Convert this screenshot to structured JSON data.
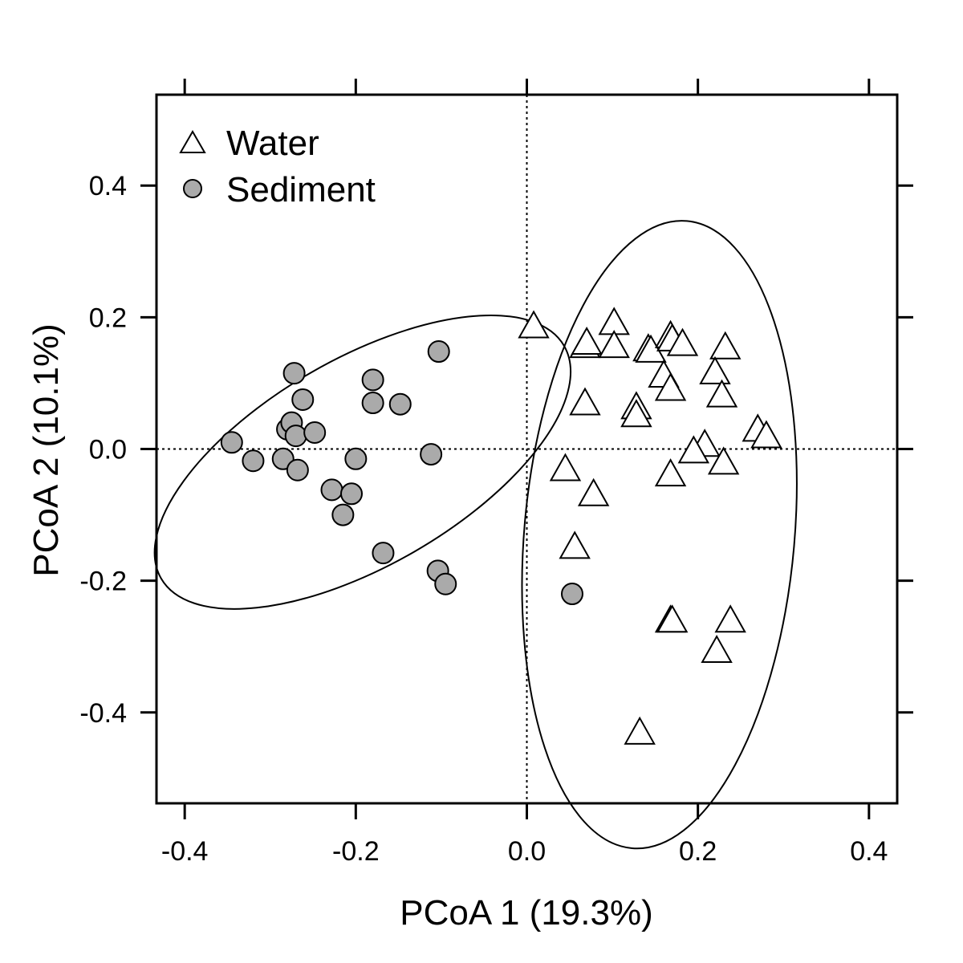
{
  "chart_data": {
    "type": "scatter",
    "xlabel": "PCoA 1 (19.3%)",
    "ylabel": "PCoA 2 (10.1%)",
    "xlim": [
      -0.433,
      0.433
    ],
    "ylim": [
      -0.538,
      0.538
    ],
    "xticks": [
      -0.4,
      -0.2,
      0.0,
      0.2,
      0.4
    ],
    "yticks": [
      -0.4,
      -0.2,
      0.0,
      0.2,
      0.4
    ],
    "xtick_labels": [
      "-0.4",
      "-0.2",
      "0.0",
      "0.2",
      "0.4"
    ],
    "ytick_labels": [
      "-0.4",
      "-0.2",
      "0.0",
      "0.2",
      "0.4"
    ],
    "reference_lines": {
      "x": 0.0,
      "y": 0.0,
      "style": "dotted"
    },
    "grid": false,
    "legend_position": "top-left",
    "series": [
      {
        "name": "Water",
        "marker": "open-triangle",
        "color": "#ffffff",
        "edge_color": "#000000",
        "x": [
          0.008,
          0.068,
          0.07,
          0.102,
          0.102,
          0.142,
          0.145,
          0.16,
          0.168,
          0.17,
          0.182,
          0.232,
          0.22,
          0.228,
          0.068,
          0.128,
          0.128,
          0.168,
          0.27,
          0.28,
          0.208,
          0.195,
          0.23,
          0.168,
          0.045,
          0.078,
          0.056,
          0.168,
          0.17,
          0.238,
          0.222,
          0.132
        ],
        "y": [
          0.185,
          0.155,
          0.16,
          0.19,
          0.155,
          0.15,
          0.148,
          0.11,
          0.17,
          0.165,
          0.158,
          0.153,
          0.115,
          0.08,
          0.068,
          0.062,
          0.05,
          0.09,
          0.028,
          0.018,
          0.005,
          -0.005,
          -0.022,
          -0.04,
          -0.032,
          -0.07,
          -0.15,
          -0.262,
          -0.262,
          -0.262,
          -0.308,
          -0.432
        ]
      },
      {
        "name": "Sediment",
        "marker": "filled-circle",
        "color": "#aaaaaa",
        "edge_color": "#000000",
        "x": [
          -0.345,
          -0.32,
          -0.285,
          -0.28,
          -0.275,
          -0.272,
          -0.27,
          -0.268,
          -0.262,
          -0.248,
          -0.228,
          -0.215,
          -0.205,
          -0.2,
          -0.18,
          -0.18,
          -0.148,
          -0.112,
          -0.103,
          -0.168,
          -0.104,
          -0.095,
          0.053
        ],
        "y": [
          0.01,
          -0.018,
          -0.015,
          0.03,
          0.04,
          0.115,
          0.02,
          -0.032,
          0.075,
          0.025,
          -0.062,
          -0.1,
          -0.068,
          -0.015,
          0.07,
          0.105,
          0.068,
          -0.008,
          0.148,
          -0.158,
          -0.185,
          -0.205,
          -0.22
        ]
      }
    ],
    "ellipses": [
      {
        "group": "Water",
        "center": [
          0.155,
          -0.13
        ],
        "semi_axes": [
          0.158,
          0.478
        ],
        "rotation_deg": 5
      },
      {
        "group": "Sediment",
        "center": [
          -0.192,
          -0.02
        ],
        "semi_axes": [
          0.272,
          0.157
        ],
        "rotation_deg": -30
      }
    ]
  }
}
